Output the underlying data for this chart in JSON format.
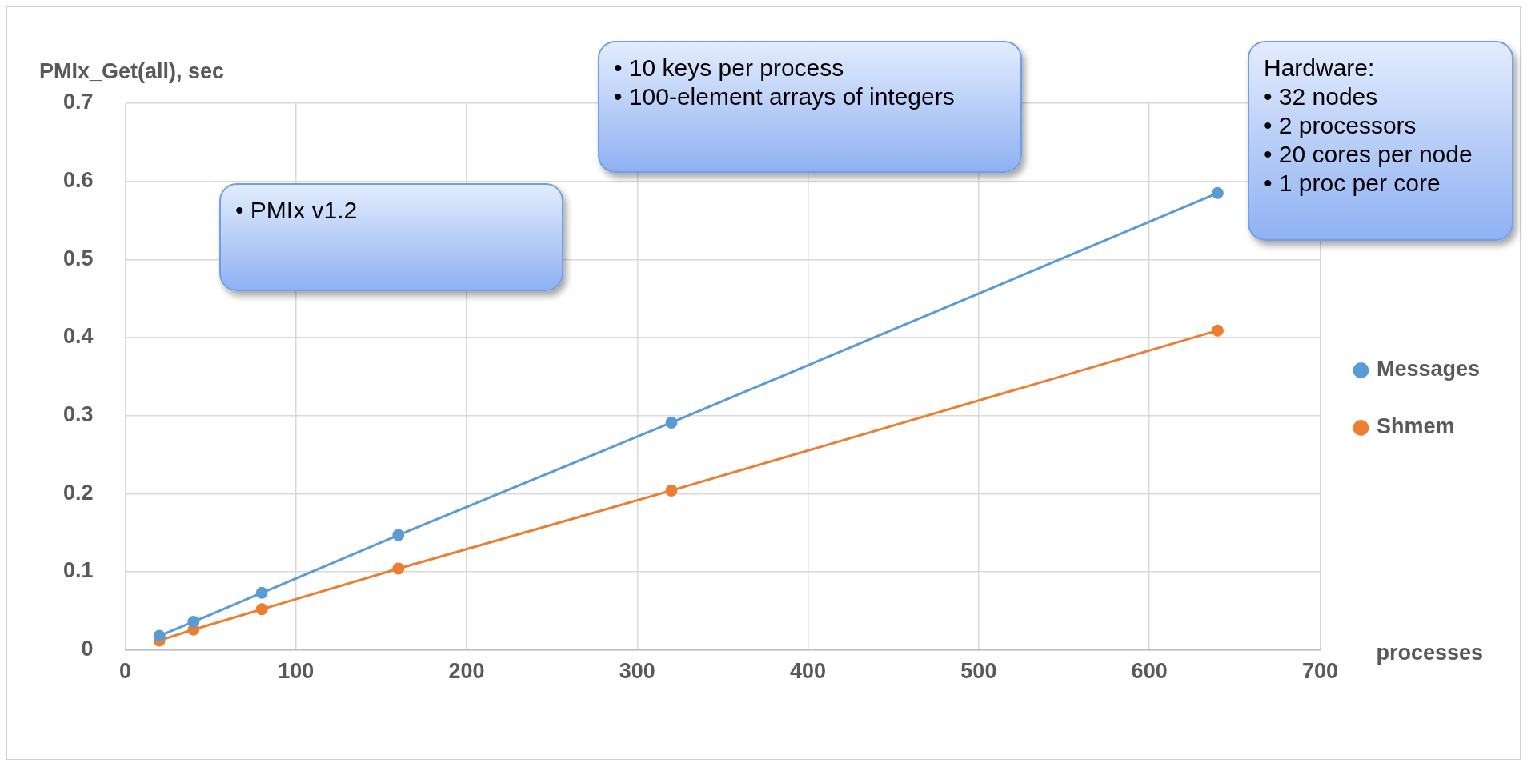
{
  "chart_data": {
    "type": "line",
    "ylabel": "PMIx_Get(all), sec",
    "xlabel": "processes",
    "x": [
      20,
      40,
      80,
      160,
      320,
      640
    ],
    "series": [
      {
        "name": "Messages",
        "color": "#5b9bd5",
        "values": [
          0.018,
          0.036,
          0.073,
          0.147,
          0.291,
          0.585
        ]
      },
      {
        "name": "Shmem",
        "color": "#ed7d31",
        "values": [
          0.012,
          0.026,
          0.052,
          0.104,
          0.204,
          0.409
        ]
      }
    ],
    "xlim": [
      0,
      700
    ],
    "xticks": [
      0,
      100,
      200,
      300,
      400,
      500,
      600,
      700
    ],
    "ylim": [
      0,
      0.7
    ],
    "yticks": [
      0,
      0.1,
      0.2,
      0.3,
      0.4,
      0.5,
      0.6,
      0.7
    ],
    "grid": true,
    "legend": "right",
    "marker": "circle",
    "line_style": "solid",
    "annotations": [
      "• PMIx v1.2",
      "• 10 keys per process\n• 100-element arrays of integers",
      "Hardware:\n• 32 nodes\n• 2 processors\n• 20 cores per node\n• 1 proc per core"
    ]
  }
}
